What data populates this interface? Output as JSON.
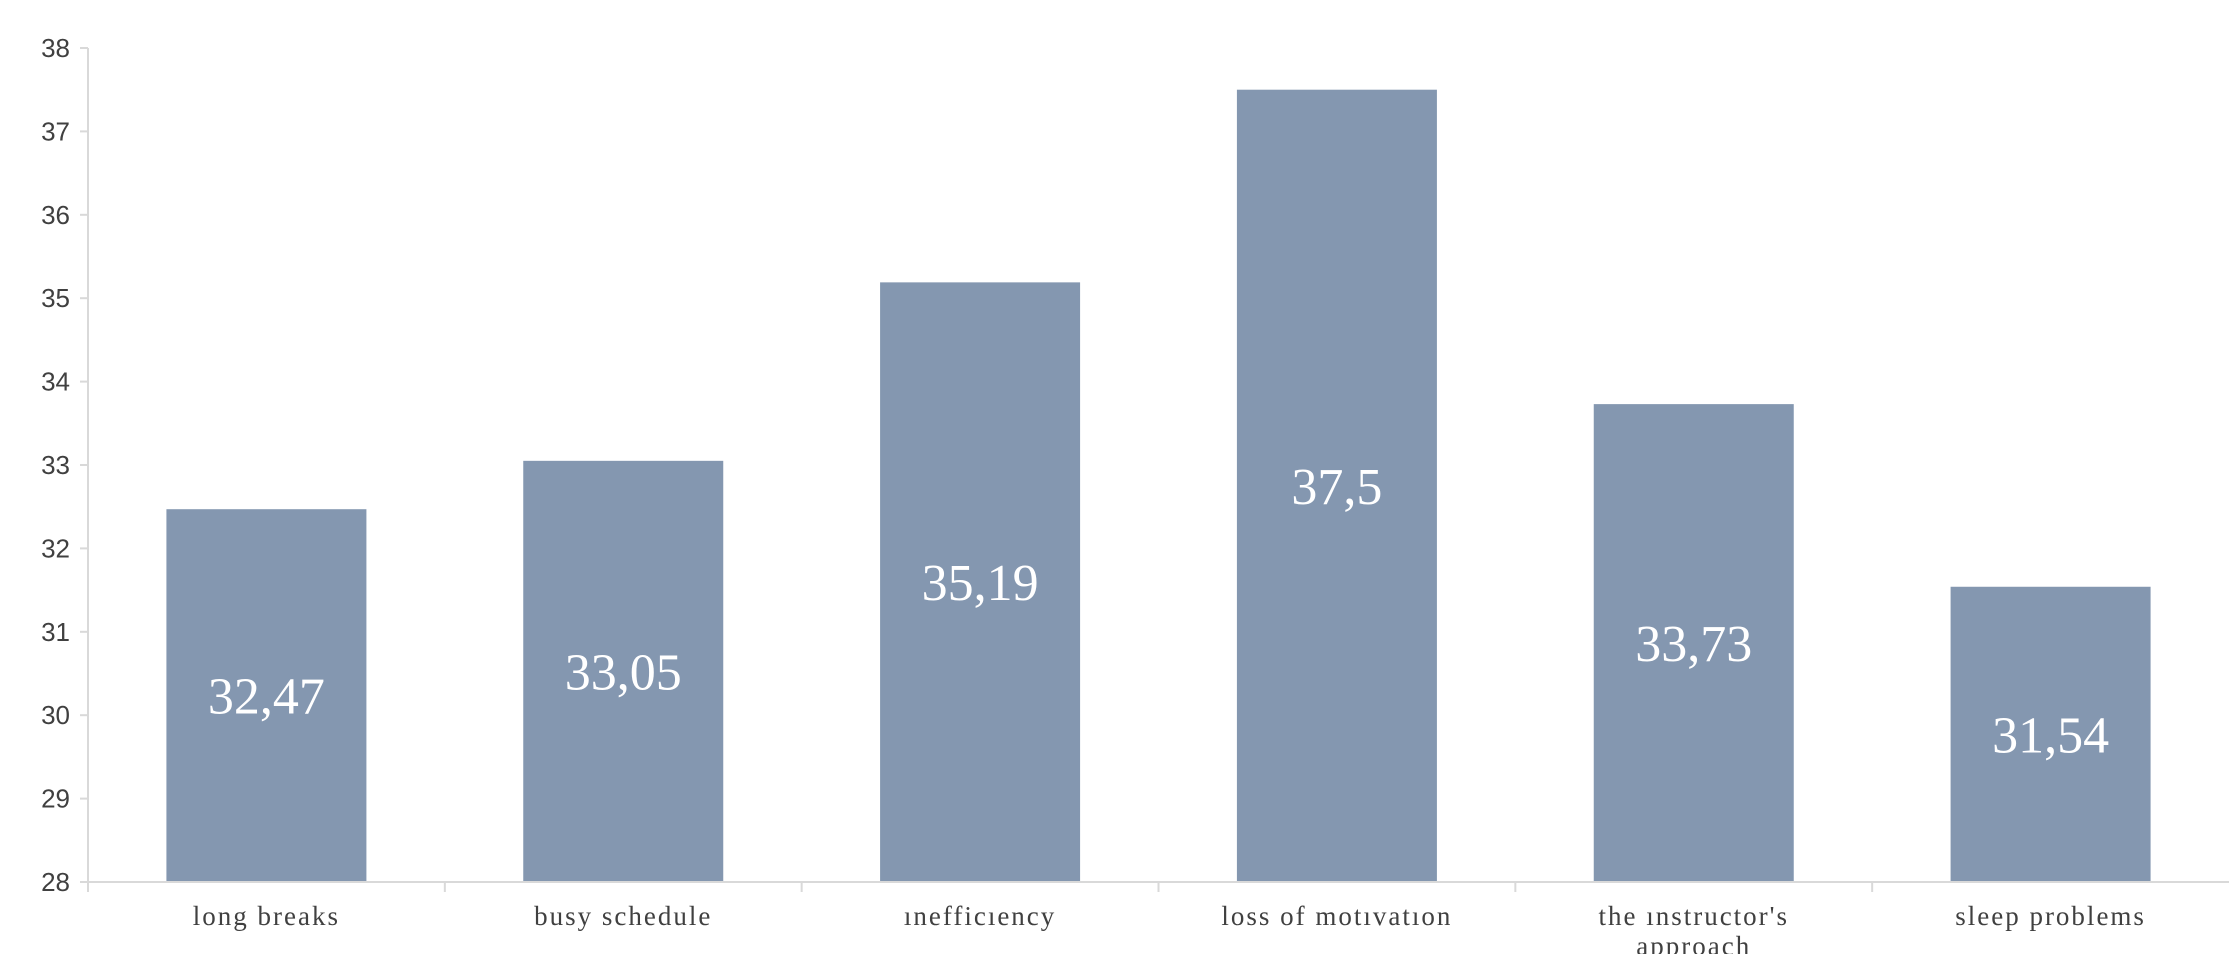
{
  "chart_data": {
    "type": "bar",
    "categories": [
      "long breaks",
      "busy schedule",
      "ınefficıency",
      "loss of motıvatıon",
      "the ınstructor's approach",
      "sleep problems"
    ],
    "values": [
      32.47,
      33.05,
      35.19,
      37.5,
      33.73,
      31.54
    ],
    "data_labels": [
      "32,47",
      "33,05",
      "35,19",
      "37,5",
      "33,73",
      "31,54"
    ],
    "y_ticks": [
      "28",
      "29",
      "30",
      "31",
      "32",
      "33",
      "34",
      "35",
      "36",
      "37",
      "38"
    ],
    "ylim": [
      28,
      38
    ],
    "bar_color": "#8497b0",
    "axis_color": "#d9d9d9",
    "grid": false,
    "legend": "none"
  }
}
